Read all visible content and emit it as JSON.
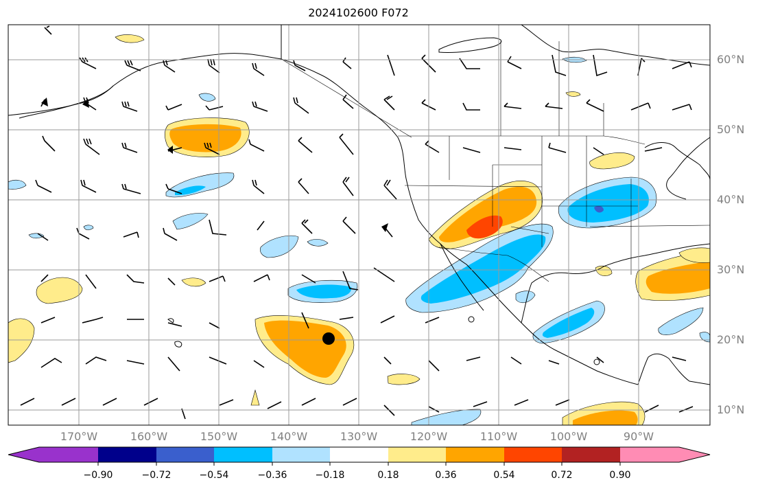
{
  "title": "2024102600 F072",
  "map": {
    "lon_labels": [
      "170°W",
      "160°W",
      "150°W",
      "140°W",
      "130°W",
      "120°W",
      "110°W",
      "100°W",
      "90°W"
    ],
    "lat_labels": [
      "60°N",
      "50°N",
      "40°N",
      "30°N",
      "20°N",
      "10°N"
    ],
    "gridlines": true,
    "marker": {
      "lon": -134.5,
      "lat": 20.2,
      "color": "#000000"
    }
  },
  "colorbar": {
    "orientation": "horizontal",
    "extend": "both",
    "colors": [
      "#9932cc",
      "#00008b",
      "#3a5fcd",
      "#00bfff",
      "#b0e2ff",
      "#ffffff",
      "#ffec8b",
      "#ffa500",
      "#ff4500",
      "#b22222",
      "#ff8cb4"
    ],
    "tick_labels": [
      "−0.90",
      "−0.72",
      "−0.54",
      "−0.36",
      "−0.18",
      "0.18",
      "0.36",
      "0.54",
      "0.72",
      "0.90"
    ]
  }
}
